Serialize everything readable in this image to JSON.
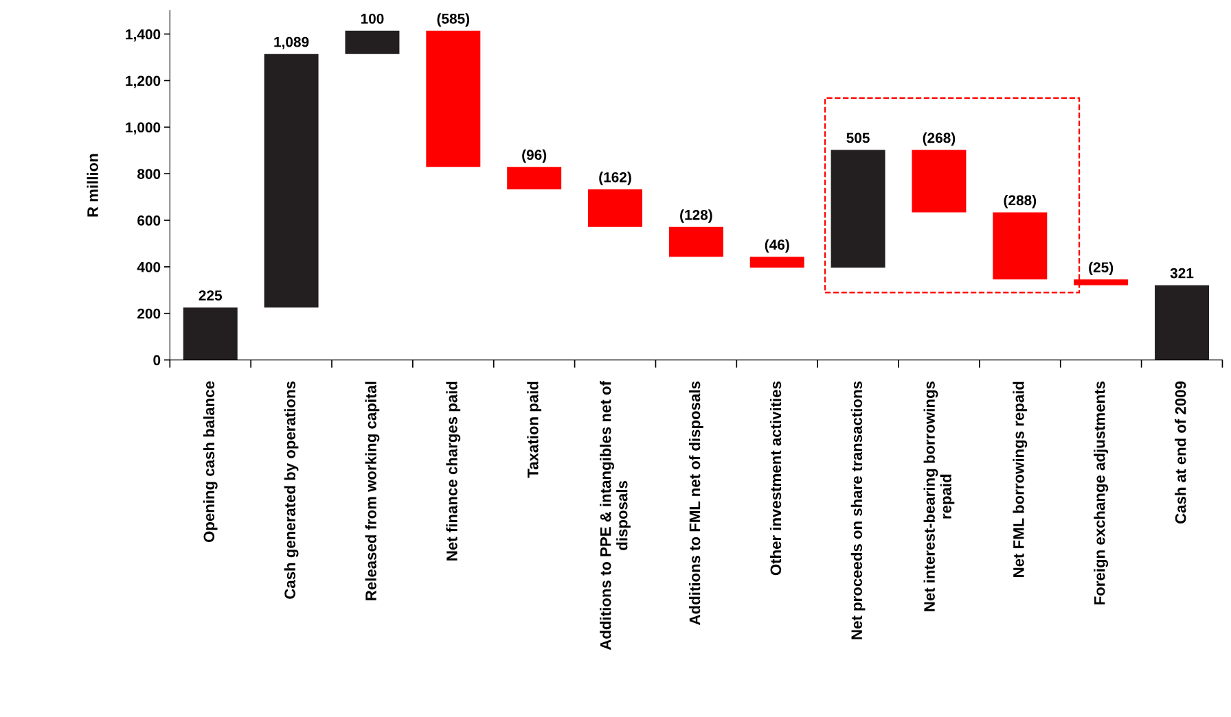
{
  "chart_data": {
    "type": "bar",
    "ylabel": "R million",
    "categories": [
      "Opening cash balance",
      "Cash generated by operations",
      "Released from working capital",
      "Net finance charges paid",
      "Taxation paid",
      "Additions to PPE & intangibles net of\ndisposals",
      "Additions to FML net of disposals",
      "Other investment activities",
      "Net proceeds on share transactions",
      "Net interest-bearing borrowings\nrepaid",
      "Net FML borrowings repaid",
      "Foreign exchange adjustments",
      "Cash at end of 2009"
    ],
    "values": [
      225,
      1089,
      100,
      -585,
      -96,
      -162,
      -128,
      -46,
      505,
      -268,
      -288,
      -25,
      321
    ],
    "base": [
      0,
      225,
      1314,
      1414,
      829,
      733,
      571,
      443,
      397,
      902,
      634,
      346,
      0
    ],
    "colors": [
      "#231f20",
      "#231f20",
      "#231f20",
      "#ff0000",
      "#ff0000",
      "#ff0000",
      "#ff0000",
      "#ff0000",
      "#231f20",
      "#ff0000",
      "#ff0000",
      "#ff0000",
      "#231f20"
    ],
    "value_labels": [
      "225",
      "1,089",
      "100",
      "(585)",
      "(96)",
      "(162)",
      "(128)",
      "(46)",
      "505",
      "(268)",
      "(288)",
      "(25)",
      "321"
    ],
    "ylim": [
      0,
      1500
    ],
    "yticks": [
      {
        "value": 0,
        "label": "0"
      },
      {
        "value": 200,
        "label": "200"
      },
      {
        "value": 400,
        "label": "400"
      },
      {
        "value": 600,
        "label": "600"
      },
      {
        "value": 800,
        "label": "800"
      },
      {
        "value": 1000,
        "label": "1,000"
      },
      {
        "value": 1200,
        "label": "1,200"
      },
      {
        "value": 1400,
        "label": "1,400"
      }
    ],
    "grid": false
  }
}
